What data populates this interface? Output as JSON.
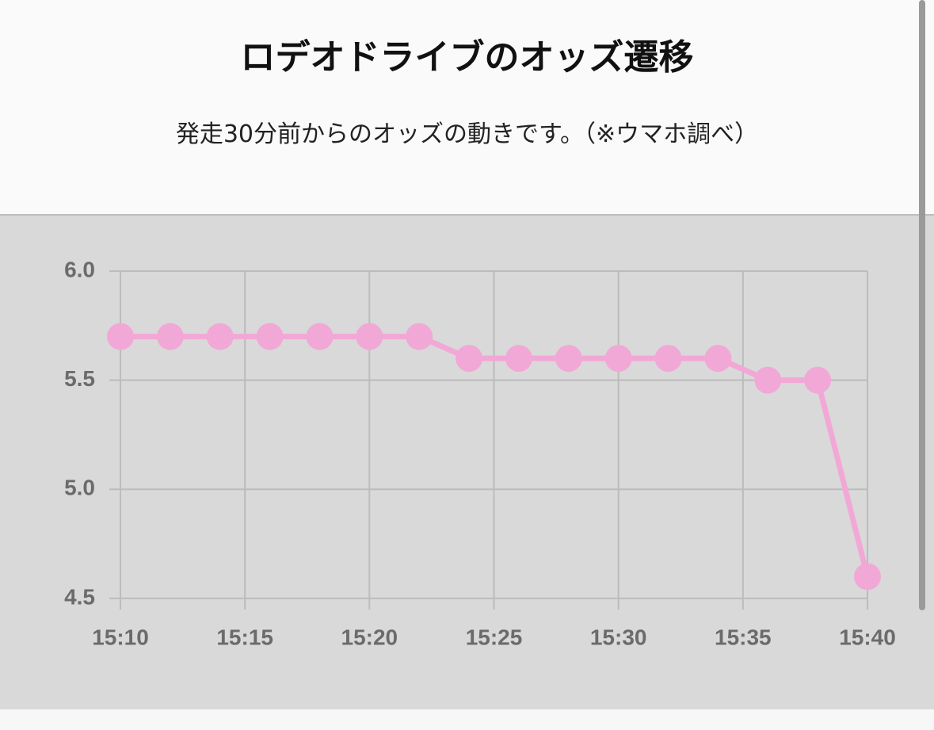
{
  "header": {
    "title": "ロデオドライブのオッズ遷移",
    "subtitle": "発走30分前からのオッズの動きです。（※ウマホ調べ）"
  },
  "chart_data": {
    "type": "line",
    "x": [
      "15:10",
      "15:12",
      "15:14",
      "15:16",
      "15:18",
      "15:20",
      "15:22",
      "15:24",
      "15:26",
      "15:28",
      "15:30",
      "15:32",
      "15:34",
      "15:36",
      "15:38",
      "15:40"
    ],
    "series": [
      {
        "color": "#f2a8d6",
        "values": [
          5.7,
          5.7,
          5.7,
          5.7,
          5.7,
          5.7,
          5.7,
          5.6,
          5.6,
          5.6,
          5.6,
          5.6,
          5.6,
          5.5,
          5.5,
          4.6
        ]
      }
    ],
    "xlim": [
      "15:10",
      "15:40"
    ],
    "xticks": [
      "15:10",
      "15:15",
      "15:20",
      "15:25",
      "15:30",
      "15:35",
      "15:40"
    ],
    "ylim": [
      4.5,
      6
    ],
    "yticks": [
      4.5,
      {
        "value": 5,
        "label": "5.0"
      },
      5.5,
      {
        "value": 6,
        "label": "6.0"
      }
    ],
    "grid": true
  }
}
